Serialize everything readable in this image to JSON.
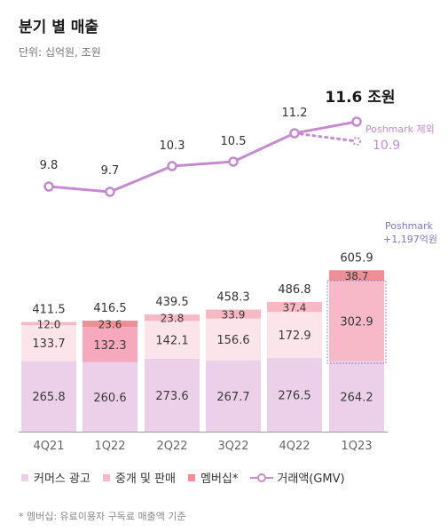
{
  "title": "분기 별 매출",
  "unit": "단위: 십억원, 조원",
  "footnote": "* 멤버십: 유료이용자 구독료 매출액 기준",
  "colors": {
    "commerce_ads": "#ecd0ea",
    "brokerage": "#fbe4ea",
    "brokerage_q123": "#f7b9c8",
    "brokerage_highlight": "#f6a9bc",
    "membership": "#f6b8c2",
    "membership_highlight": "#ee8f98",
    "gmv_line": "#c48ccf"
  },
  "legend": {
    "commerce_ads": "커머스 광고",
    "brokerage": "중개 및 판매",
    "membership": "멤버십*",
    "gmv": "거래액(GMV)"
  },
  "chart_data": {
    "type": "bar",
    "stacked": true,
    "categories": [
      "4Q21",
      "1Q22",
      "2Q22",
      "3Q22",
      "4Q22",
      "1Q23"
    ],
    "series": [
      {
        "name": "커머스 광고",
        "values": [
          265.8,
          260.6,
          273.6,
          267.7,
          276.5,
          264.2
        ]
      },
      {
        "name": "중개 및 판매",
        "values": [
          133.7,
          132.3,
          142.1,
          156.6,
          172.9,
          302.9
        ]
      },
      {
        "name": "멤버십*",
        "values": [
          12.0,
          23.6,
          23.8,
          33.9,
          37.4,
          38.7
        ]
      }
    ],
    "totals": [
      "411.5",
      "416.5",
      "439.5",
      "458.3",
      "486.8",
      "605.9"
    ],
    "segment_labels": [
      [
        "265.8",
        "260.6",
        "273.6",
        "267.7",
        "276.5",
        "264.2"
      ],
      [
        "133.7",
        "132.3",
        "142.1",
        "156.6",
        "172.9",
        "302.9"
      ],
      [
        "12.0",
        "23.6",
        "23.8",
        "33.9",
        "37.4",
        "38.7"
      ]
    ],
    "gmv": {
      "name": "거래액(GMV)",
      "values": [
        9.8,
        9.7,
        10.3,
        10.5,
        11.2,
        11.6
      ],
      "labels": [
        "9.8",
        "9.7",
        "10.3",
        "10.5",
        "11.2",
        "11.6 조원"
      ],
      "excluding": {
        "label": "Poshmark 제외",
        "value": 10.9,
        "value_label": "10.9"
      }
    },
    "annotation": {
      "line1": "Poshmark",
      "line2": "+1,197억원"
    }
  }
}
